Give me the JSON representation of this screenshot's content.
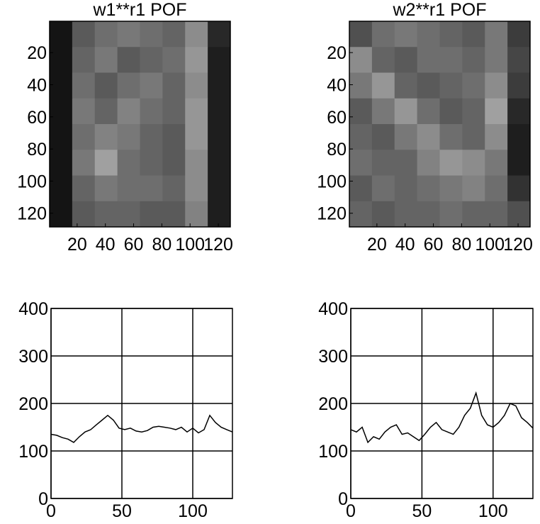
{
  "chart_data": [
    {
      "type": "image",
      "title": "w1**r1  POF",
      "colormap": "gray",
      "clim": [
        0,
        255
      ],
      "xlim": [
        0.5,
        128.5
      ],
      "ylim": [
        0.5,
        128.5
      ],
      "xticks": [
        20,
        40,
        60,
        80,
        100,
        120
      ],
      "yticks": [
        20,
        40,
        60,
        80,
        100,
        120
      ],
      "values": [
        [
          20,
          90,
          110,
          120,
          110,
          100,
          140,
          40
        ],
        [
          20,
          100,
          120,
          90,
          100,
          110,
          150,
          30
        ],
        [
          20,
          110,
          90,
          110,
          120,
          100,
          140,
          30
        ],
        [
          20,
          120,
          100,
          130,
          110,
          100,
          150,
          30
        ],
        [
          20,
          110,
          130,
          120,
          100,
          90,
          150,
          30
        ],
        [
          20,
          120,
          160,
          110,
          100,
          90,
          140,
          30
        ],
        [
          20,
          100,
          120,
          110,
          110,
          100,
          140,
          30
        ],
        [
          20,
          90,
          100,
          100,
          90,
          90,
          130,
          30
        ]
      ]
    },
    {
      "type": "image",
      "title": "w2**r1  POF",
      "colormap": "gray",
      "clim": [
        0,
        255
      ],
      "xlim": [
        0.5,
        128.5
      ],
      "ylim": [
        0.5,
        128.5
      ],
      "xticks": [
        20,
        40,
        60,
        80,
        100,
        120
      ],
      "yticks": [
        20,
        40,
        60,
        80,
        100,
        120
      ],
      "values": [
        [
          80,
          110,
          120,
          110,
          100,
          90,
          120,
          60
        ],
        [
          140,
          100,
          90,
          110,
          110,
          100,
          120,
          70
        ],
        [
          120,
          150,
          100,
          90,
          100,
          110,
          140,
          60
        ],
        [
          90,
          120,
          150,
          110,
          90,
          100,
          160,
          40
        ],
        [
          100,
          90,
          120,
          140,
          110,
          100,
          140,
          30
        ],
        [
          110,
          100,
          100,
          130,
          150,
          140,
          120,
          30
        ],
        [
          90,
          110,
          100,
          110,
          120,
          130,
          110,
          50
        ],
        [
          100,
          90,
          100,
          100,
          110,
          100,
          100,
          80
        ]
      ]
    },
    {
      "type": "line",
      "color": "#000000",
      "grid": true,
      "xlim": [
        0,
        128
      ],
      "ylim": [
        0,
        400
      ],
      "xticks": [
        0,
        50,
        100
      ],
      "yticks": [
        0,
        100,
        200,
        300,
        400
      ],
      "x": [
        0,
        4,
        8,
        12,
        16,
        20,
        24,
        28,
        32,
        36,
        40,
        44,
        48,
        52,
        56,
        60,
        64,
        68,
        72,
        76,
        80,
        84,
        88,
        92,
        96,
        100,
        104,
        108,
        112,
        116,
        120,
        124,
        128
      ],
      "values": [
        135,
        133,
        128,
        125,
        118,
        130,
        140,
        145,
        155,
        165,
        175,
        165,
        148,
        145,
        148,
        142,
        140,
        143,
        150,
        152,
        150,
        148,
        145,
        150,
        140,
        148,
        138,
        145,
        175,
        160,
        150,
        145,
        140
      ]
    },
    {
      "type": "line",
      "color": "#000000",
      "grid": true,
      "xlim": [
        0,
        128
      ],
      "ylim": [
        0,
        400
      ],
      "xticks": [
        0,
        50,
        100
      ],
      "yticks": [
        0,
        100,
        200,
        300,
        400
      ],
      "x": [
        0,
        4,
        8,
        12,
        16,
        20,
        24,
        28,
        32,
        36,
        40,
        44,
        48,
        52,
        56,
        60,
        64,
        68,
        72,
        76,
        80,
        84,
        88,
        92,
        96,
        100,
        104,
        108,
        112,
        116,
        120,
        124,
        128
      ],
      "values": [
        145,
        140,
        150,
        118,
        130,
        125,
        140,
        150,
        155,
        135,
        138,
        130,
        122,
        135,
        150,
        160,
        145,
        140,
        135,
        150,
        175,
        190,
        222,
        175,
        155,
        150,
        160,
        175,
        200,
        195,
        170,
        160,
        148
      ]
    }
  ]
}
